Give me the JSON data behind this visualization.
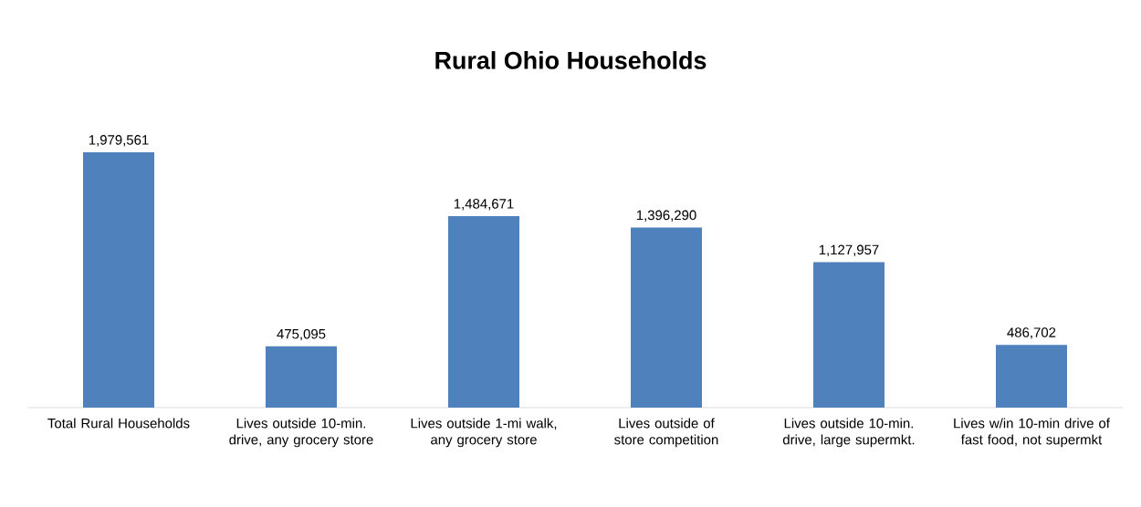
{
  "chart_data": {
    "type": "bar",
    "title": "Rural Ohio Households",
    "categories": [
      "Total Rural Households",
      "Lives outside 10-min. drive, any grocery store",
      "Lives outside 1-mi walk, any grocery store",
      "Lives outside of store competition",
      "Lives outside 10-min. drive, large supermkt.",
      "Lives w/in 10-min drive of fast food, not supermkt"
    ],
    "values": [
      1979561,
      475095,
      1484671,
      1396290,
      1127957,
      486702
    ],
    "value_labels": [
      "1,979,561",
      "475,095",
      "1,484,671",
      "1,396,290",
      "1,127,957",
      "486,702"
    ],
    "color": "#4f81bd"
  }
}
